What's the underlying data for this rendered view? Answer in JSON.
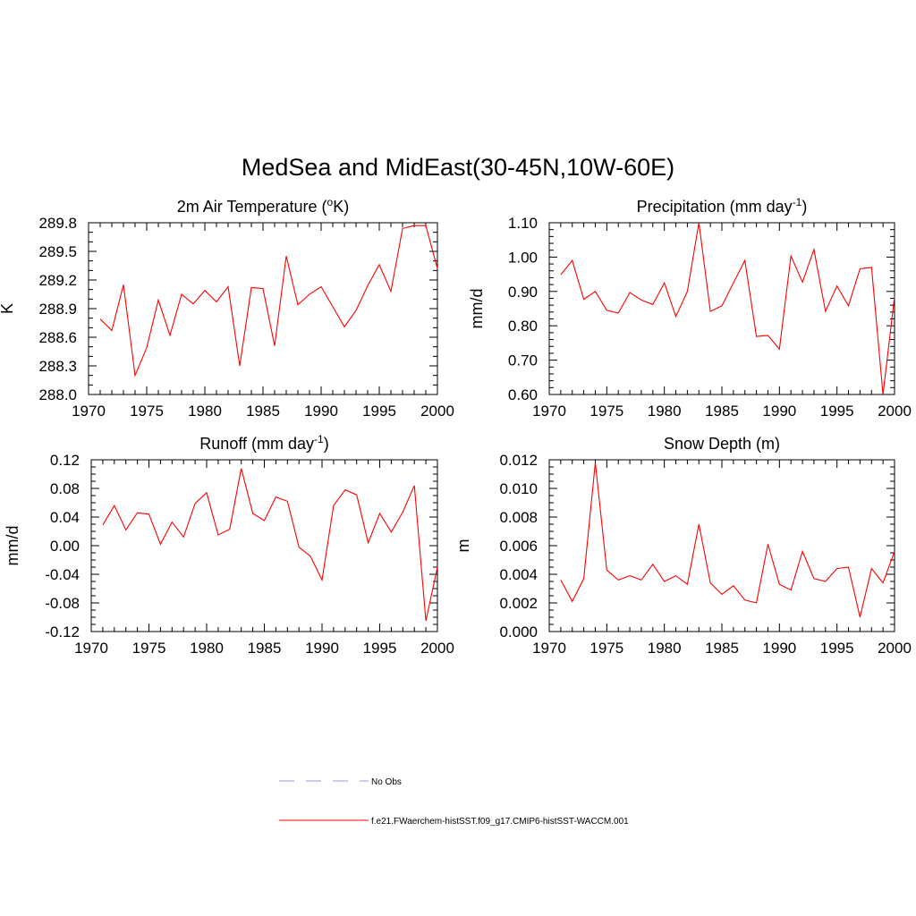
{
  "title": "MedSea and MidEast(30-45N,10W-60E)",
  "colors": {
    "model": "#ff0000",
    "obs": "#9999dd",
    "axis": "#000000"
  },
  "legend": [
    {
      "label": "No Obs",
      "style": "dashed",
      "color": "#9999dd"
    },
    {
      "label": "f.e21.FWaerchem-histSST.f09_g17.CMIP6-histSST-WACCM.001",
      "style": "solid",
      "color": "#ff0000"
    }
  ],
  "chart_data": [
    {
      "type": "line",
      "title": "2m Air Temperature (",
      "title_sup": "o",
      "title_after": "K)",
      "ylabel": "K",
      "xlim": [
        1970,
        2000
      ],
      "ylim": [
        288.0,
        289.8
      ],
      "xticks": [
        1970,
        1975,
        1980,
        1985,
        1990,
        1995,
        2000
      ],
      "xtick_labels": [
        "1970",
        "1975",
        "1980",
        "1985",
        "1990",
        "1995",
        "2000"
      ],
      "yticks": [
        288.0,
        288.3,
        288.6,
        288.9,
        289.2,
        289.5,
        289.8
      ],
      "ytick_labels": [
        "288.0",
        "288.3",
        "288.6",
        "288.9",
        "289.2",
        "289.5",
        "289.8"
      ],
      "yminor": 0.1,
      "x": [
        1971,
        1972,
        1973,
        1974,
        1975,
        1976,
        1977,
        1978,
        1979,
        1980,
        1981,
        1982,
        1983,
        1984,
        1985,
        1986,
        1987,
        1988,
        1989,
        1990,
        1991,
        1992,
        1993,
        1994,
        1995,
        1996,
        1997,
        1998,
        1999,
        2000
      ],
      "series": [
        {
          "values": [
            288.79,
            288.67,
            289.15,
            288.2,
            288.49,
            288.99,
            288.62,
            289.05,
            288.95,
            289.09,
            288.97,
            289.13,
            288.3,
            289.12,
            289.11,
            288.51,
            289.45,
            288.94,
            289.05,
            289.13,
            288.92,
            288.71,
            288.88,
            289.14,
            289.36,
            289.08,
            289.74,
            289.77,
            289.77,
            289.32
          ]
        }
      ]
    },
    {
      "type": "line",
      "title": "Precipitation (mm day",
      "title_sup": "-1",
      "title_after": ")",
      "ylabel": "mm/d",
      "xlim": [
        1970,
        2000
      ],
      "ylim": [
        0.6,
        1.1
      ],
      "xticks": [
        1970,
        1975,
        1980,
        1985,
        1990,
        1995,
        2000
      ],
      "xtick_labels": [
        "1970",
        "1975",
        "1980",
        "1985",
        "1990",
        "1995",
        "2000"
      ],
      "yticks": [
        0.6,
        0.7,
        0.8,
        0.9,
        1.0,
        1.1
      ],
      "ytick_labels": [
        "0.60",
        "0.70",
        "0.80",
        "0.90",
        "1.00",
        "1.10"
      ],
      "yminor": 0.02,
      "x": [
        1971,
        1972,
        1973,
        1974,
        1975,
        1976,
        1977,
        1978,
        1979,
        1980,
        1981,
        1982,
        1983,
        1984,
        1985,
        1986,
        1987,
        1988,
        1989,
        1990,
        1991,
        1992,
        1993,
        1994,
        1995,
        1996,
        1997,
        1998,
        1999,
        2000
      ],
      "series": [
        {
          "values": [
            0.949,
            0.99,
            0.877,
            0.9,
            0.845,
            0.837,
            0.897,
            0.875,
            0.862,
            0.925,
            0.827,
            0.9,
            1.1,
            0.842,
            0.858,
            0.925,
            0.99,
            0.769,
            0.772,
            0.732,
            1.003,
            0.927,
            1.022,
            0.842,
            0.916,
            0.858,
            0.966,
            0.97,
            0.6,
            0.885
          ]
        }
      ]
    },
    {
      "type": "line",
      "title": "Runoff (mm day",
      "title_sup": "-1",
      "title_after": ")",
      "ylabel": "mm/d",
      "xlim": [
        1970,
        2000
      ],
      "ylim": [
        -0.12,
        0.12
      ],
      "xticks": [
        1970,
        1975,
        1980,
        1985,
        1990,
        1995,
        2000
      ],
      "xtick_labels": [
        "1970",
        "1975",
        "1980",
        "1985",
        "1990",
        "1995",
        "2000"
      ],
      "yticks": [
        -0.12,
        -0.08,
        -0.04,
        0.0,
        0.04,
        0.08,
        0.12
      ],
      "ytick_labels": [
        "-0.12",
        "-0.08",
        "-0.04",
        "0.00",
        "0.04",
        "0.08",
        "0.12"
      ],
      "yminor": 0.01,
      "x": [
        1971,
        1972,
        1973,
        1974,
        1975,
        1976,
        1977,
        1978,
        1979,
        1980,
        1981,
        1982,
        1983,
        1984,
        1985,
        1986,
        1987,
        1988,
        1989,
        1990,
        1991,
        1992,
        1993,
        1994,
        1995,
        1996,
        1997,
        1998,
        1999,
        2000
      ],
      "series": [
        {
          "values": [
            0.029,
            0.056,
            0.022,
            0.046,
            0.044,
            0.002,
            0.033,
            0.012,
            0.059,
            0.074,
            0.015,
            0.023,
            0.108,
            0.045,
            0.035,
            0.068,
            0.062,
            -0.002,
            -0.015,
            -0.048,
            0.056,
            0.078,
            0.071,
            0.004,
            0.045,
            0.019,
            0.047,
            0.084,
            -0.105,
            -0.03
          ]
        }
      ]
    },
    {
      "type": "line",
      "title": "Snow Depth (m)",
      "title_sup": "",
      "title_after": "",
      "ylabel": "m",
      "xlim": [
        1970,
        2000
      ],
      "ylim": [
        0.0,
        0.012
      ],
      "xticks": [
        1970,
        1975,
        1980,
        1985,
        1990,
        1995,
        2000
      ],
      "xtick_labels": [
        "1970",
        "1975",
        "1980",
        "1985",
        "1990",
        "1995",
        "2000"
      ],
      "yticks": [
        0.0,
        0.002,
        0.004,
        0.006,
        0.008,
        0.01,
        0.012
      ],
      "ytick_labels": [
        "0.000",
        "0.002",
        "0.004",
        "0.006",
        "0.008",
        "0.010",
        "0.012"
      ],
      "yminor": 0.0005,
      "x": [
        1971,
        1972,
        1973,
        1974,
        1975,
        1976,
        1977,
        1978,
        1979,
        1980,
        1981,
        1982,
        1983,
        1984,
        1985,
        1986,
        1987,
        1988,
        1989,
        1990,
        1991,
        1992,
        1993,
        1994,
        1995,
        1996,
        1997,
        1998,
        1999,
        2000
      ],
      "series": [
        {
          "values": [
            0.0036,
            0.0021,
            0.0037,
            0.0118,
            0.0043,
            0.0036,
            0.0039,
            0.0036,
            0.0047,
            0.0035,
            0.0039,
            0.0033,
            0.0075,
            0.0034,
            0.0026,
            0.0032,
            0.0022,
            0.002,
            0.0061,
            0.0033,
            0.0029,
            0.0056,
            0.0037,
            0.0035,
            0.0044,
            0.0045,
            0.001,
            0.0044,
            0.0034,
            0.0056
          ]
        }
      ]
    }
  ]
}
